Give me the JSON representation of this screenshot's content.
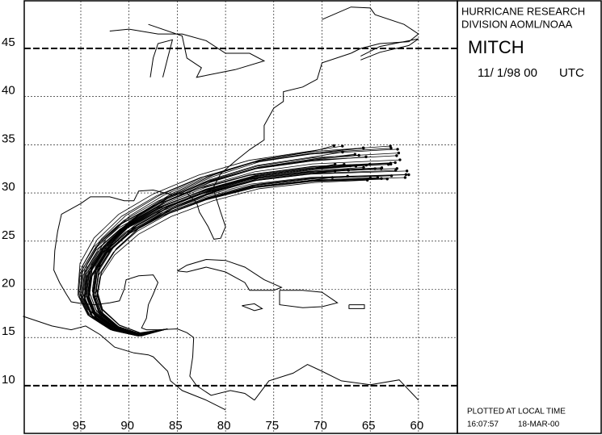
{
  "header": {
    "line1": "HURRICANE RESEARCH",
    "line2": "DIVISION AOML/NOAA",
    "storm": "MITCH",
    "time": "11/ 1/98 00",
    "zone": "UTC"
  },
  "footer": {
    "note": "PLOTTED AT LOCAL TIME",
    "clock": "16:07:57",
    "date": "18-MAR-00"
  },
  "map": {
    "lat_ticks": [
      10,
      15,
      20,
      25,
      30,
      35,
      40,
      45
    ],
    "lon_ticks": [
      95,
      90,
      85,
      80,
      75,
      70,
      65,
      60
    ]
  }
}
